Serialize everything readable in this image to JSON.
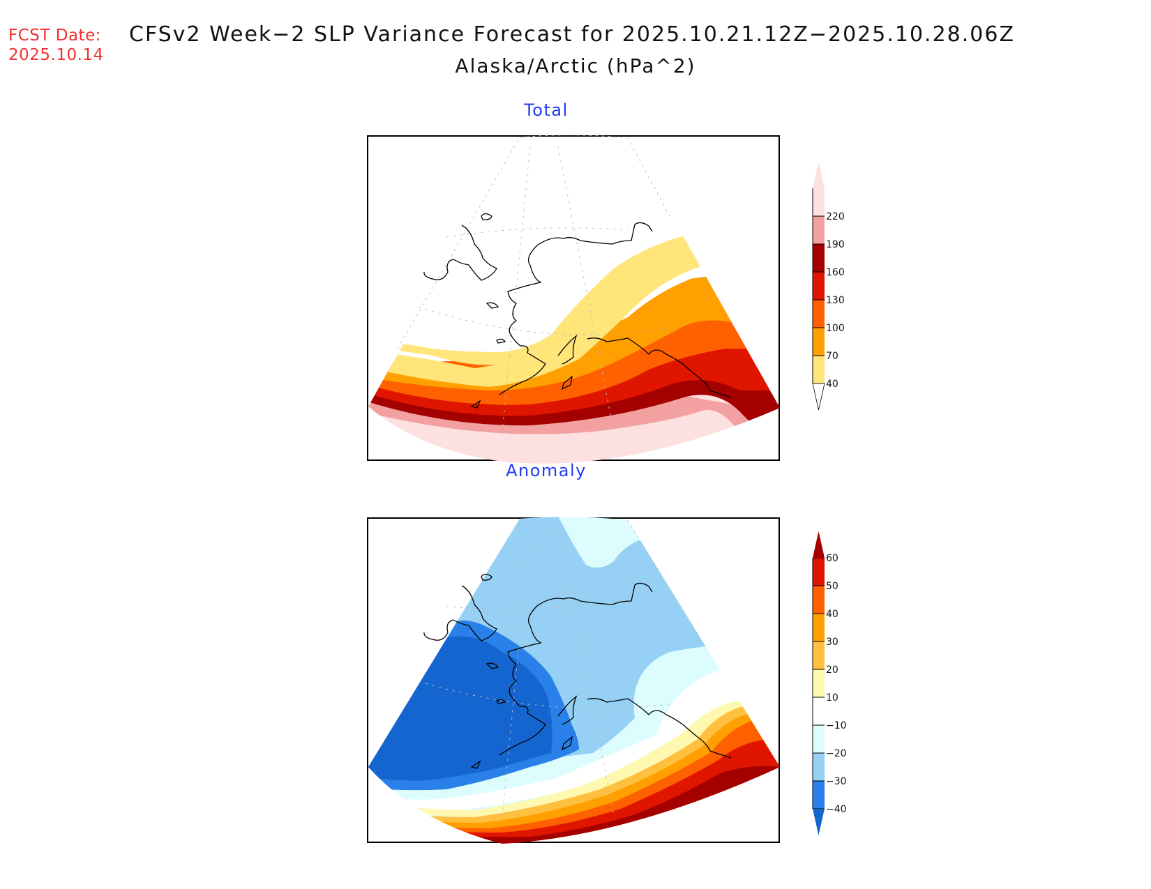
{
  "header": {
    "fcst_label": "FCST Date:",
    "fcst_date": "2025.10.14",
    "title": "CFSv2 Week−2 SLP Variance Forecast for 2025.10.21.12Z−2025.10.28.06Z",
    "subtitle": "Alaska/Arctic (hPa^2)"
  },
  "chart_data": [
    {
      "type": "heatmap",
      "title": "Total",
      "region": "Alaska/Arctic",
      "units": "hPa^2",
      "projection": "polar stereographic sector",
      "colorbar": {
        "levels": [
          40,
          70,
          100,
          130,
          160,
          190,
          220
        ],
        "labels": [
          "40",
          "70",
          "100",
          "130",
          "160",
          "190",
          "220"
        ],
        "colors": [
          "#ffe57a",
          "#ffa000",
          "#ff6000",
          "#e01500",
          "#a50000",
          "#f2a0a0",
          "#fde0e0"
        ],
        "below_color": "#ffffff",
        "above_color": "#fde0e0",
        "orientation": "vertical",
        "placement": "right"
      },
      "description": "Variance increases southward from <40 over mainland/Arctic to >220 over North Pacific south of Aleutians; bands 40–70 yellow through Bering Sea and southern Alaska, 160–190 dark red along Aleutians/Gulf of Alaska."
    },
    {
      "type": "heatmap",
      "title": "Anomaly",
      "region": "Alaska/Arctic",
      "units": "hPa^2",
      "projection": "polar stereographic sector",
      "colorbar": {
        "levels": [
          -40,
          -30,
          -20,
          -10,
          10,
          20,
          30,
          40,
          50,
          60
        ],
        "labels": [
          "−40",
          "−30",
          "−20",
          "−10",
          "10",
          "20",
          "30",
          "40",
          "50",
          "60"
        ],
        "colors": [
          "#2880e8",
          "#96d0f5",
          "#dcfcfd",
          "#ffffff",
          "#fff8b0",
          "#ffc040",
          "#ffa000",
          "#ff6000",
          "#e01500"
        ],
        "below_color": "#1565d0",
        "above_color": "#a50000",
        "orientation": "vertical",
        "placement": "right"
      },
      "description": "Negative anomalies (−40 and below) over Bering Sea/western Alaska, −30 to −20 over Arctic and northern Alaska; positive anomalies >60 over North Pacific/Gulf of Alaska."
    }
  ]
}
